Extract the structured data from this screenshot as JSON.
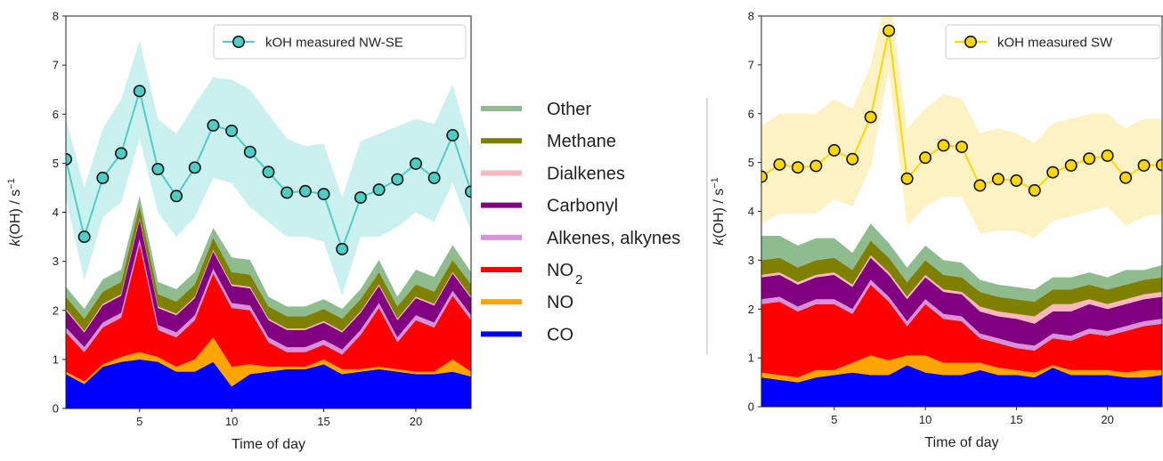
{
  "chart_data": [
    {
      "type": "area",
      "xlabel": "Time of day",
      "ylabel_italic": "k",
      "ylabel_rest": "(OH) / s",
      "ylabel_sup": "−1",
      "xlim": [
        1,
        23
      ],
      "ylim": [
        0,
        8
      ],
      "xticks": [
        5,
        10,
        15,
        20
      ],
      "yticks": [
        0,
        1,
        2,
        3,
        4,
        5,
        6,
        7,
        8
      ],
      "x": [
        1,
        2,
        3,
        4,
        5,
        6,
        7,
        8,
        9,
        10,
        11,
        12,
        13,
        14,
        15,
        16,
        17,
        18,
        19,
        20,
        21,
        22,
        23
      ],
      "stack_series": [
        {
          "name": "CO",
          "color": "#0000ff",
          "values": [
            0.7,
            0.5,
            0.85,
            0.95,
            1.0,
            0.95,
            0.75,
            0.75,
            0.95,
            0.45,
            0.7,
            0.75,
            0.8,
            0.8,
            0.9,
            0.7,
            0.75,
            0.8,
            0.75,
            0.7,
            0.7,
            0.75,
            0.65
          ]
        },
        {
          "name": "NO",
          "color": "#ffa500",
          "values": [
            0.05,
            0.05,
            0.05,
            0.1,
            0.15,
            0.1,
            0.1,
            0.25,
            0.5,
            0.4,
            0.2,
            0.1,
            0.05,
            0.05,
            0.1,
            0.1,
            0.05,
            0.05,
            0.05,
            0.05,
            0.05,
            0.25,
            0.1
          ]
        },
        {
          "name": "NO2",
          "color": "#ff0000",
          "values": [
            0.8,
            0.6,
            0.75,
            0.8,
            2.2,
            0.55,
            0.6,
            0.8,
            1.3,
            1.2,
            1.1,
            0.5,
            0.3,
            0.3,
            0.3,
            0.3,
            0.7,
            1.2,
            0.55,
            1.05,
            0.9,
            1.3,
            1.05
          ]
        },
        {
          "name": "Alkenes, alkynes",
          "color": "#da8fda",
          "values": [
            0.1,
            0.1,
            0.1,
            0.1,
            0.1,
            0.1,
            0.1,
            0.1,
            0.1,
            0.1,
            0.1,
            0.1,
            0.1,
            0.1,
            0.1,
            0.1,
            0.1,
            0.1,
            0.1,
            0.1,
            0.1,
            0.1,
            0.1
          ]
        },
        {
          "name": "Carbonyl",
          "color": "#800080",
          "values": [
            0.35,
            0.3,
            0.35,
            0.35,
            0.4,
            0.35,
            0.35,
            0.35,
            0.35,
            0.35,
            0.35,
            0.35,
            0.35,
            0.35,
            0.35,
            0.35,
            0.35,
            0.35,
            0.35,
            0.35,
            0.35,
            0.35,
            0.35
          ]
        },
        {
          "name": "Dialkenes",
          "color": "#ffb6c1",
          "values": [
            0.03,
            0.03,
            0.03,
            0.03,
            0.03,
            0.03,
            0.03,
            0.03,
            0.03,
            0.03,
            0.03,
            0.03,
            0.03,
            0.03,
            0.03,
            0.03,
            0.03,
            0.03,
            0.03,
            0.03,
            0.03,
            0.03,
            0.03
          ]
        },
        {
          "name": "Methane",
          "color": "#808000",
          "values": [
            0.25,
            0.25,
            0.25,
            0.25,
            0.25,
            0.25,
            0.25,
            0.25,
            0.25,
            0.25,
            0.25,
            0.25,
            0.25,
            0.25,
            0.25,
            0.25,
            0.25,
            0.25,
            0.25,
            0.25,
            0.25,
            0.25,
            0.25
          ]
        },
        {
          "name": "Other",
          "color": "#8fbc8f",
          "values": [
            0.2,
            0.2,
            0.25,
            0.25,
            0.2,
            0.25,
            0.25,
            0.25,
            0.2,
            0.3,
            0.3,
            0.2,
            0.2,
            0.2,
            0.2,
            0.2,
            0.2,
            0.25,
            0.2,
            0.3,
            0.3,
            0.3,
            0.25
          ]
        }
      ],
      "measured": {
        "name": "kOH measured NW-SE",
        "line_color": "#4ecdc4",
        "band_color": "#b8ecea",
        "values": [
          5.08,
          3.5,
          4.7,
          5.2,
          6.47,
          4.88,
          4.33,
          4.91,
          5.77,
          5.66,
          5.23,
          4.82,
          4.4,
          4.43,
          4.37,
          3.25,
          4.3,
          4.46,
          4.67,
          4.99,
          4.7,
          5.57,
          4.42
        ],
        "upper": [
          5.9,
          4.5,
          5.7,
          6.3,
          7.5,
          5.9,
          5.6,
          6.2,
          6.75,
          6.7,
          6.5,
          6.0,
          5.5,
          5.35,
          5.4,
          4.3,
          5.45,
          5.6,
          5.75,
          5.9,
          5.8,
          6.6,
          5.3
        ],
        "lower": [
          4.3,
          2.6,
          3.9,
          4.2,
          5.5,
          4.0,
          3.5,
          3.9,
          4.7,
          4.6,
          4.1,
          3.8,
          3.5,
          3.5,
          3.4,
          2.3,
          3.5,
          3.5,
          3.7,
          4.0,
          3.8,
          4.6,
          3.6
        ]
      },
      "legend_position": "upper right"
    },
    {
      "type": "area",
      "xlabel": "Time of day",
      "ylabel_italic": "k",
      "ylabel_rest": "(OH) / s",
      "ylabel_sup": "−1",
      "xlim": [
        1,
        23
      ],
      "ylim": [
        0,
        8
      ],
      "xticks": [
        5,
        10,
        15,
        20
      ],
      "yticks": [
        0,
        1,
        2,
        3,
        4,
        5,
        6,
        7,
        8
      ],
      "x": [
        1,
        2,
        3,
        4,
        5,
        6,
        7,
        8,
        9,
        10,
        11,
        12,
        13,
        14,
        15,
        16,
        17,
        18,
        19,
        20,
        21,
        22,
        23
      ],
      "stack_series": [
        {
          "name": "CO",
          "color": "#0000ff",
          "values": [
            0.6,
            0.55,
            0.5,
            0.6,
            0.65,
            0.7,
            0.65,
            0.65,
            0.85,
            0.7,
            0.65,
            0.65,
            0.75,
            0.65,
            0.65,
            0.6,
            0.8,
            0.65,
            0.65,
            0.65,
            0.6,
            0.6,
            0.65
          ]
        },
        {
          "name": "NO",
          "color": "#ffa500",
          "values": [
            0.1,
            0.1,
            0.1,
            0.15,
            0.1,
            0.2,
            0.4,
            0.3,
            0.2,
            0.35,
            0.25,
            0.25,
            0.15,
            0.15,
            0.1,
            0.1,
            0.05,
            0.1,
            0.1,
            0.1,
            0.1,
            0.15,
            0.1
          ]
        },
        {
          "name": "NO2",
          "color": "#ff0000",
          "values": [
            1.4,
            1.5,
            1.35,
            1.35,
            1.35,
            1.0,
            1.45,
            1.2,
            0.6,
            1.05,
            0.9,
            0.85,
            0.5,
            0.5,
            0.45,
            0.45,
            0.55,
            0.6,
            0.75,
            0.7,
            0.85,
            0.9,
            0.95
          ]
        },
        {
          "name": "Alkenes, alkynes",
          "color": "#da8fda",
          "values": [
            0.1,
            0.1,
            0.1,
            0.1,
            0.1,
            0.1,
            0.1,
            0.1,
            0.1,
            0.1,
            0.1,
            0.1,
            0.1,
            0.1,
            0.1,
            0.1,
            0.1,
            0.1,
            0.1,
            0.1,
            0.1,
            0.1,
            0.1
          ]
        },
        {
          "name": "Carbonyl",
          "color": "#800080",
          "values": [
            0.45,
            0.45,
            0.45,
            0.45,
            0.5,
            0.45,
            0.45,
            0.45,
            0.45,
            0.45,
            0.45,
            0.45,
            0.45,
            0.45,
            0.5,
            0.45,
            0.45,
            0.5,
            0.5,
            0.45,
            0.45,
            0.45,
            0.45
          ]
        },
        {
          "name": "Dialkenes",
          "color": "#ffb6c1",
          "values": [
            0.05,
            0.05,
            0.05,
            0.05,
            0.05,
            0.05,
            0.05,
            0.05,
            0.05,
            0.05,
            0.05,
            0.05,
            0.1,
            0.1,
            0.1,
            0.15,
            0.15,
            0.15,
            0.1,
            0.1,
            0.1,
            0.1,
            0.1
          ]
        },
        {
          "name": "Methane",
          "color": "#808000",
          "values": [
            0.3,
            0.3,
            0.3,
            0.3,
            0.3,
            0.3,
            0.3,
            0.3,
            0.3,
            0.3,
            0.3,
            0.3,
            0.3,
            0.3,
            0.3,
            0.3,
            0.3,
            0.3,
            0.3,
            0.3,
            0.3,
            0.3,
            0.3
          ]
        },
        {
          "name": "Other",
          "color": "#8fbc8f",
          "values": [
            0.5,
            0.45,
            0.45,
            0.45,
            0.4,
            0.35,
            0.35,
            0.3,
            0.3,
            0.3,
            0.3,
            0.3,
            0.25,
            0.25,
            0.25,
            0.25,
            0.25,
            0.25,
            0.25,
            0.25,
            0.3,
            0.2,
            0.25
          ]
        }
      ],
      "measured": {
        "name": "kOH measured SW",
        "line_color": "#ffd700",
        "band_color": "#fbeeb0",
        "values": [
          4.71,
          4.96,
          4.9,
          4.93,
          5.25,
          5.07,
          5.93,
          7.7,
          4.67,
          5.1,
          5.35,
          5.32,
          4.53,
          4.66,
          4.63,
          4.43,
          4.8,
          4.94,
          5.08,
          5.14,
          4.69,
          4.94,
          4.95
        ],
        "upper": [
          5.75,
          6.0,
          6.0,
          6.0,
          6.3,
          6.1,
          7.0,
          8.6,
          5.7,
          6.1,
          6.4,
          6.3,
          5.6,
          5.7,
          5.6,
          5.4,
          5.8,
          5.9,
          6.0,
          6.0,
          5.7,
          5.9,
          5.9
        ],
        "lower": [
          3.75,
          3.95,
          3.95,
          3.95,
          4.25,
          4.1,
          4.9,
          6.9,
          3.7,
          4.1,
          4.3,
          4.3,
          3.55,
          3.6,
          3.6,
          3.45,
          3.8,
          3.9,
          4.0,
          4.1,
          3.7,
          3.9,
          3.95
        ]
      },
      "legend_position": "upper right"
    }
  ],
  "shared_legend": [
    {
      "label": "Other",
      "color": "#8fbc8f"
    },
    {
      "label": "Methane",
      "color": "#808000"
    },
    {
      "label": "Dialkenes",
      "color": "#ffb6c1"
    },
    {
      "label": "Carbonyl",
      "color": "#800080"
    },
    {
      "label": "Alkenes, alkynes",
      "color": "#da8fda"
    },
    {
      "label": "NO",
      "sub": "2",
      "color": "#ff0000"
    },
    {
      "label": "NO",
      "color": "#ffa500"
    },
    {
      "label": "CO",
      "color": "#0000ff"
    }
  ]
}
